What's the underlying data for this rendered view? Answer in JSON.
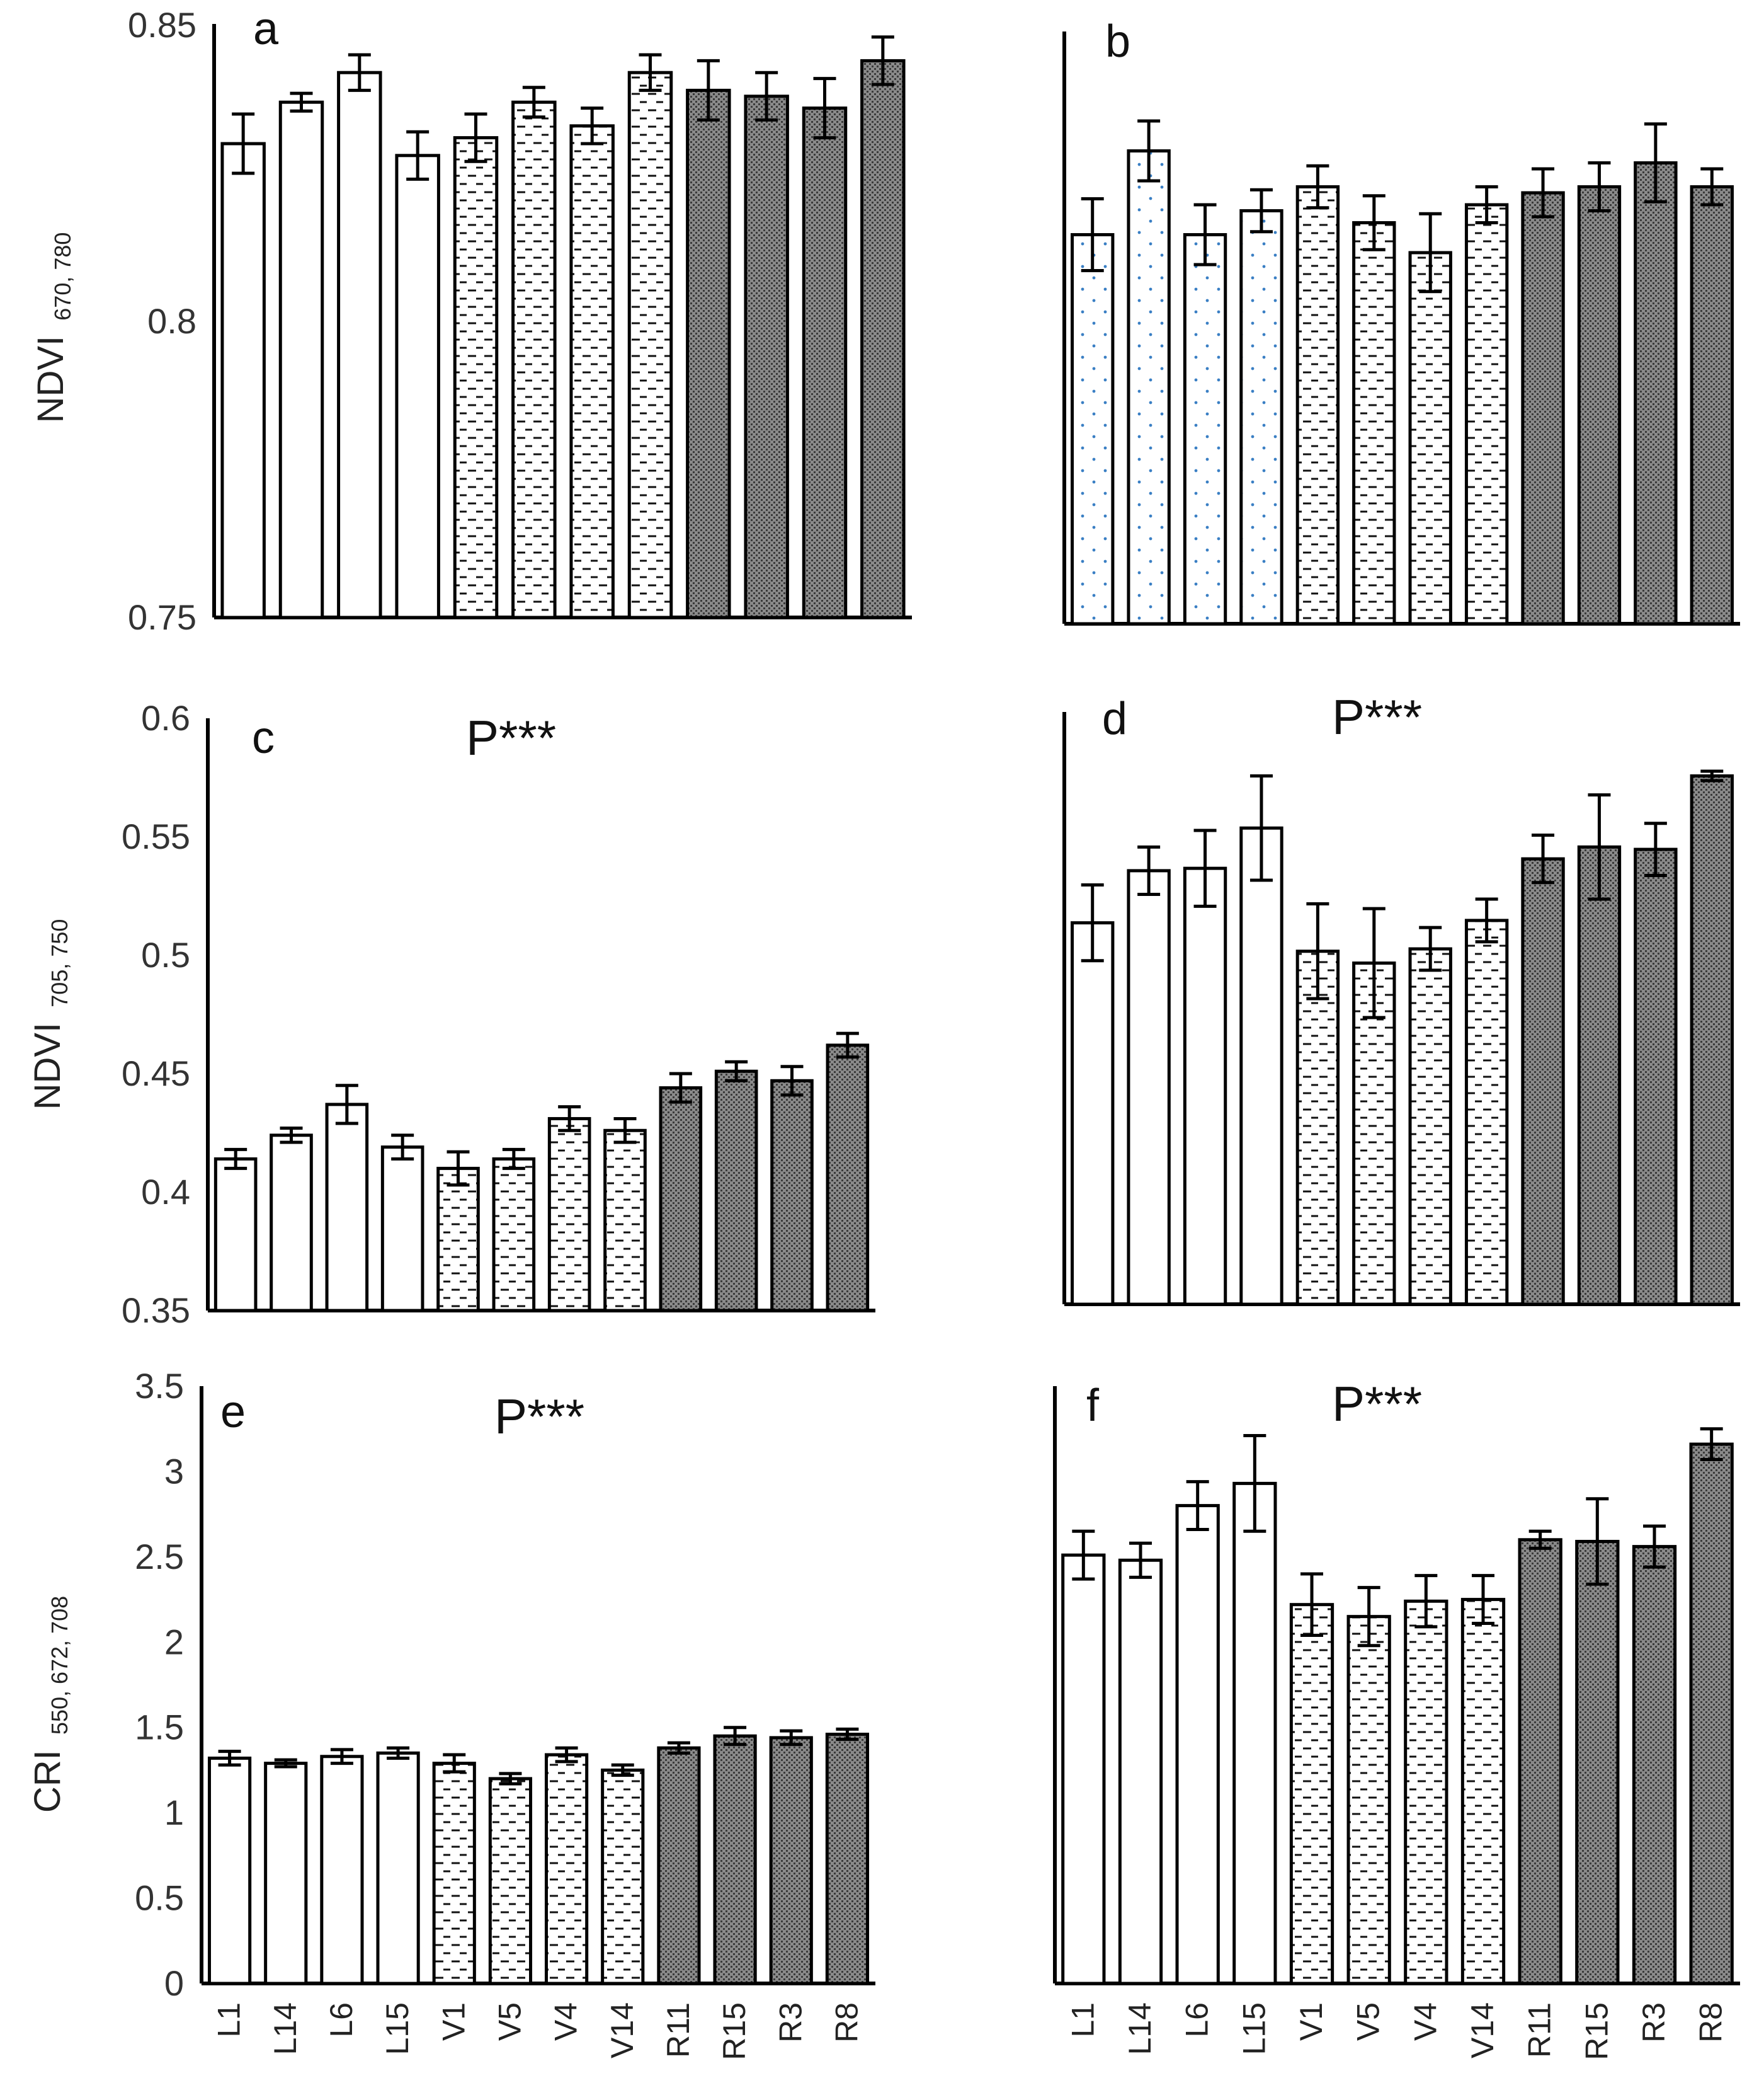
{
  "figure": {
    "panels": [
      {
        "id": "a",
        "letter": "a",
        "significance": "",
        "ylabel_main": "NDVI",
        "ylabel_sub": "670, 780",
        "show_yticks": true
      },
      {
        "id": "b",
        "letter": "b",
        "significance": "",
        "ylabel_main": "",
        "ylabel_sub": "",
        "show_yticks": false
      },
      {
        "id": "c",
        "letter": "c",
        "significance": "P***",
        "ylabel_main": "NDVI",
        "ylabel_sub": "705, 750",
        "show_yticks": true
      },
      {
        "id": "d",
        "letter": "d",
        "significance": "P***",
        "ylabel_main": "",
        "ylabel_sub": "",
        "show_yticks": false
      },
      {
        "id": "e",
        "letter": "e",
        "significance": "P***",
        "ylabel_main": "CRI",
        "ylabel_sub": "550, 672, 708",
        "show_yticks": true
      },
      {
        "id": "f",
        "letter": "f",
        "significance": "P***",
        "ylabel_main": "",
        "ylabel_sub": "",
        "show_yticks": false
      }
    ],
    "colors": {
      "hatch_dark": "#7a7a7a",
      "hatch_dot_blue": "#3a7fc4",
      "background": "#ffffff"
    }
  },
  "chart_data": [
    {
      "panel": "a",
      "type": "bar",
      "categories": [
        "L1",
        "L14",
        "L6",
        "L15",
        "V1",
        "V5",
        "V4",
        "V14",
        "R11",
        "R15",
        "R3",
        "R8"
      ],
      "groups": [
        "plain",
        "plain",
        "plain",
        "plain",
        "dashed",
        "dashed",
        "dashed",
        "dashed",
        "dark",
        "dark",
        "dark",
        "dark"
      ],
      "values": [
        0.83,
        0.837,
        0.842,
        0.828,
        0.831,
        0.837,
        0.833,
        0.842,
        0.839,
        0.838,
        0.836,
        0.844
      ],
      "errors": [
        0.005,
        0.0015,
        0.003,
        0.004,
        0.004,
        0.0025,
        0.003,
        0.003,
        0.005,
        0.004,
        0.005,
        0.004
      ],
      "ylim": [
        0.75,
        0.85
      ],
      "yticks": [
        "0.75",
        "0.8",
        "0.85"
      ],
      "ytick_values": [
        0.75,
        0.8,
        0.85
      ],
      "ylabel": "NDVI 670, 780",
      "show_xlabels": false
    },
    {
      "panel": "b",
      "type": "bar",
      "categories": [
        "L1",
        "L14",
        "L6",
        "L15",
        "V1",
        "V5",
        "V4",
        "V14",
        "R11",
        "R15",
        "R3",
        "R8"
      ],
      "groups": [
        "dotted",
        "dotted",
        "dotted",
        "dotted",
        "dashed",
        "dashed",
        "dashed",
        "dashed",
        "dark",
        "dark",
        "dark",
        "dark"
      ],
      "values": [
        0.815,
        0.829,
        0.815,
        0.819,
        0.823,
        0.817,
        0.812,
        0.82,
        0.822,
        0.823,
        0.827,
        0.823
      ],
      "errors": [
        0.006,
        0.005,
        0.005,
        0.0035,
        0.0035,
        0.0045,
        0.0065,
        0.003,
        0.004,
        0.004,
        0.0065,
        0.003
      ],
      "ylim": [
        0.75,
        0.85
      ],
      "yticks": [],
      "ytick_values": [],
      "ylabel": "",
      "show_xlabels": false
    },
    {
      "panel": "c",
      "type": "bar",
      "categories": [
        "L1",
        "L14",
        "L6",
        "L15",
        "V1",
        "V5",
        "V4",
        "V14",
        "R11",
        "R15",
        "R3",
        "R8"
      ],
      "groups": [
        "plain",
        "plain",
        "plain",
        "plain",
        "dashed",
        "dashed",
        "dashed",
        "dashed",
        "dark",
        "dark",
        "dark",
        "dark"
      ],
      "values": [
        0.414,
        0.424,
        0.437,
        0.419,
        0.41,
        0.414,
        0.431,
        0.426,
        0.444,
        0.451,
        0.447,
        0.462
      ],
      "errors": [
        0.004,
        0.003,
        0.008,
        0.005,
        0.007,
        0.004,
        0.005,
        0.005,
        0.006,
        0.004,
        0.006,
        0.005
      ],
      "ylim": [
        0.35,
        0.6
      ],
      "yticks": [
        "0.35",
        "0.4",
        "0.45",
        "0.5",
        "0.55",
        "0.6"
      ],
      "ytick_values": [
        0.35,
        0.4,
        0.45,
        0.5,
        0.55,
        0.6
      ],
      "ylabel": "NDVI 705, 750",
      "show_xlabels": false
    },
    {
      "panel": "d",
      "type": "bar",
      "categories": [
        "L1",
        "L14",
        "L6",
        "L15",
        "V1",
        "V5",
        "V4",
        "V14",
        "R11",
        "R15",
        "R3",
        "R8"
      ],
      "groups": [
        "plain",
        "plain",
        "plain",
        "plain",
        "dashed",
        "dashed",
        "dashed",
        "dashed",
        "dark",
        "dark",
        "dark",
        "dark"
      ],
      "values": [
        0.511,
        0.533,
        0.534,
        0.551,
        0.499,
        0.494,
        0.5,
        0.512,
        0.538,
        0.543,
        0.542,
        0.573
      ],
      "errors": [
        0.016,
        0.01,
        0.016,
        0.022,
        0.02,
        0.023,
        0.009,
        0.009,
        0.01,
        0.022,
        0.011,
        0.002
      ],
      "ylim": [
        0.35,
        0.6
      ],
      "yticks": [],
      "ytick_values": [],
      "ylabel": "",
      "show_xlabels": false
    },
    {
      "panel": "e",
      "type": "bar",
      "categories": [
        "L1",
        "L14",
        "L6",
        "L15",
        "V1",
        "V5",
        "V4",
        "V14",
        "R11",
        "R15",
        "R3",
        "R8"
      ],
      "groups": [
        "plain",
        "plain",
        "plain",
        "plain",
        "dashed",
        "dashed",
        "dashed",
        "dashed",
        "dark",
        "dark",
        "dark",
        "dark"
      ],
      "values": [
        1.32,
        1.29,
        1.33,
        1.35,
        1.29,
        1.2,
        1.34,
        1.25,
        1.38,
        1.45,
        1.44,
        1.46
      ],
      "errors": [
        0.04,
        0.02,
        0.04,
        0.03,
        0.05,
        0.03,
        0.04,
        0.03,
        0.03,
        0.05,
        0.04,
        0.03
      ],
      "ylim": [
        0,
        3.5
      ],
      "yticks": [
        "0",
        "0.5",
        "1",
        "1.5",
        "2",
        "2.5",
        "3",
        "3.5"
      ],
      "ytick_values": [
        0,
        0.5,
        1,
        1.5,
        2,
        2.5,
        3,
        3.5
      ],
      "ylabel": "CRI 550, 672, 708",
      "show_xlabels": true
    },
    {
      "panel": "f",
      "type": "bar",
      "categories": [
        "L1",
        "L14",
        "L6",
        "L15",
        "V1",
        "V5",
        "V4",
        "V14",
        "R11",
        "R15",
        "R3",
        "R8"
      ],
      "groups": [
        "plain",
        "plain",
        "plain",
        "plain",
        "dashed",
        "dashed",
        "dashed",
        "dashed",
        "dark",
        "dark",
        "dark",
        "dark"
      ],
      "values": [
        2.51,
        2.48,
        2.8,
        2.93,
        2.22,
        2.15,
        2.24,
        2.25,
        2.6,
        2.59,
        2.56,
        3.16
      ],
      "errors": [
        0.14,
        0.1,
        0.14,
        0.28,
        0.18,
        0.17,
        0.15,
        0.14,
        0.05,
        0.25,
        0.12,
        0.09
      ],
      "ylim": [
        0,
        3.5
      ],
      "yticks": [],
      "ytick_values": [],
      "ylabel": "",
      "show_xlabels": true
    }
  ]
}
